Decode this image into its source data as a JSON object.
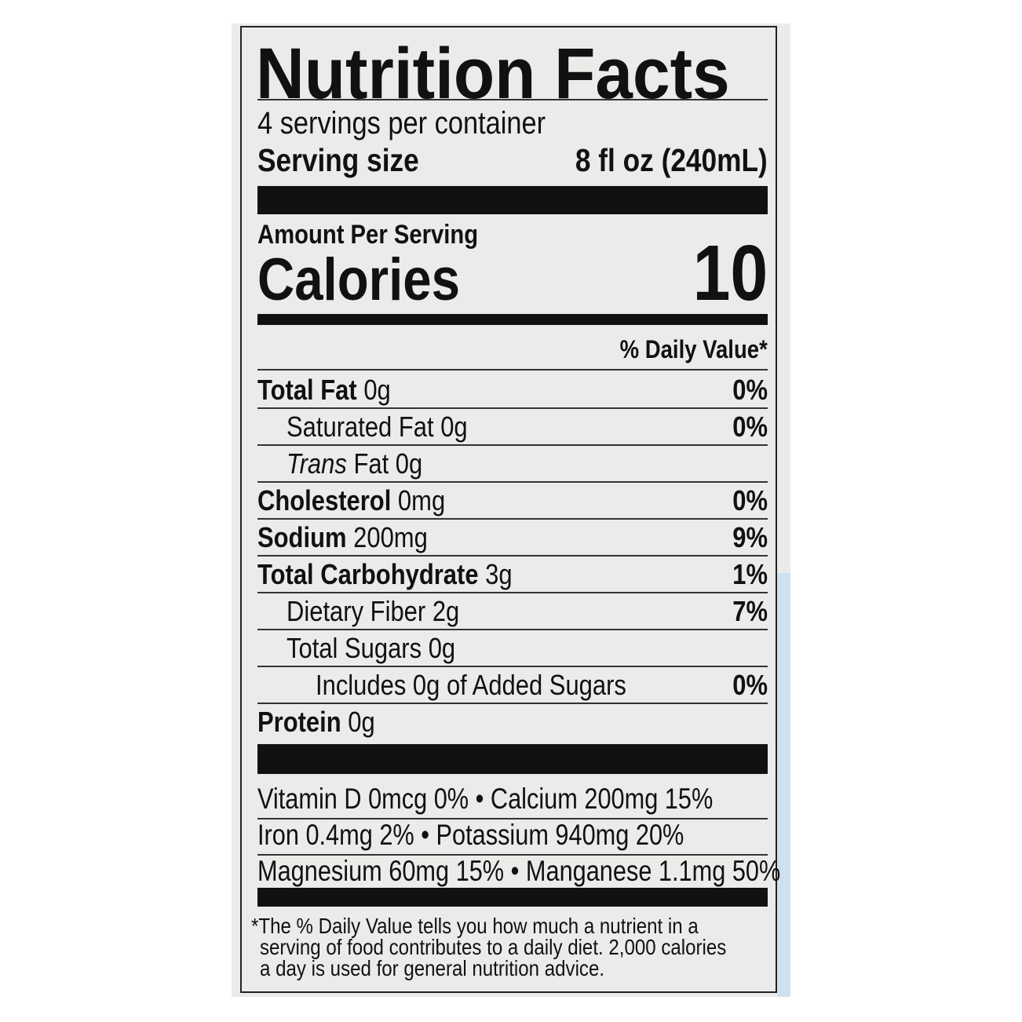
{
  "title": "Nutrition Facts",
  "servings_per_container": "4 servings per container",
  "serving_size": {
    "label": "Serving size",
    "value": "8 fl oz (240mL)"
  },
  "amount_per_serving": "Amount Per Serving",
  "calories": {
    "label": "Calories",
    "value": "10"
  },
  "daily_value_header": "% Daily Value*",
  "nutrients": [
    {
      "name": "Total Fat",
      "amount": "0g",
      "dv": "0%",
      "bold": true,
      "indent": 0
    },
    {
      "name": "Saturated Fat",
      "amount": "0g",
      "dv": "0%",
      "bold": false,
      "indent": 1
    },
    {
      "name": "Trans",
      "name_suffix": "Fat",
      "amount": "0g",
      "dv": "",
      "bold": false,
      "indent": 1
    },
    {
      "name": "Cholesterol",
      "amount": "0mg",
      "dv": "0%",
      "bold": true,
      "indent": 0
    },
    {
      "name": "Sodium",
      "amount": "200mg",
      "dv": "9%",
      "bold": true,
      "indent": 0
    },
    {
      "name": "Total Carbohydrate",
      "amount": "3g",
      "dv": "1%",
      "bold": true,
      "indent": 0
    },
    {
      "name": "Dietary Fiber",
      "amount": "2g",
      "dv": "7%",
      "bold": false,
      "indent": 1
    },
    {
      "name": "Total Sugars",
      "amount": "0g",
      "dv": "",
      "bold": false,
      "indent": 1
    },
    {
      "name": "Includes 0g of Added Sugars",
      "amount": "",
      "dv": "0%",
      "bold": false,
      "indent": 2
    },
    {
      "name": "Protein",
      "amount": "0g",
      "dv": "",
      "bold": true,
      "indent": 0
    }
  ],
  "vitamins": [
    "Vitamin D 0mcg 0% • Calcium 200mg 15%",
    "Iron 0.4mg 2% • Potassium 940mg 20%",
    "Magnesium 60mg 15% • Manganese 1.1mg 50%"
  ],
  "footnote": [
    "*The % Daily Value tells you how much a nutrient in a",
    "serving of food contributes to a daily diet. 2,000 calories",
    "a day is used for general nutrition advice."
  ],
  "colors": {
    "ink": "#111111",
    "label_bg": "#ebebe9",
    "edge_tint": "#cfe0f0"
  }
}
